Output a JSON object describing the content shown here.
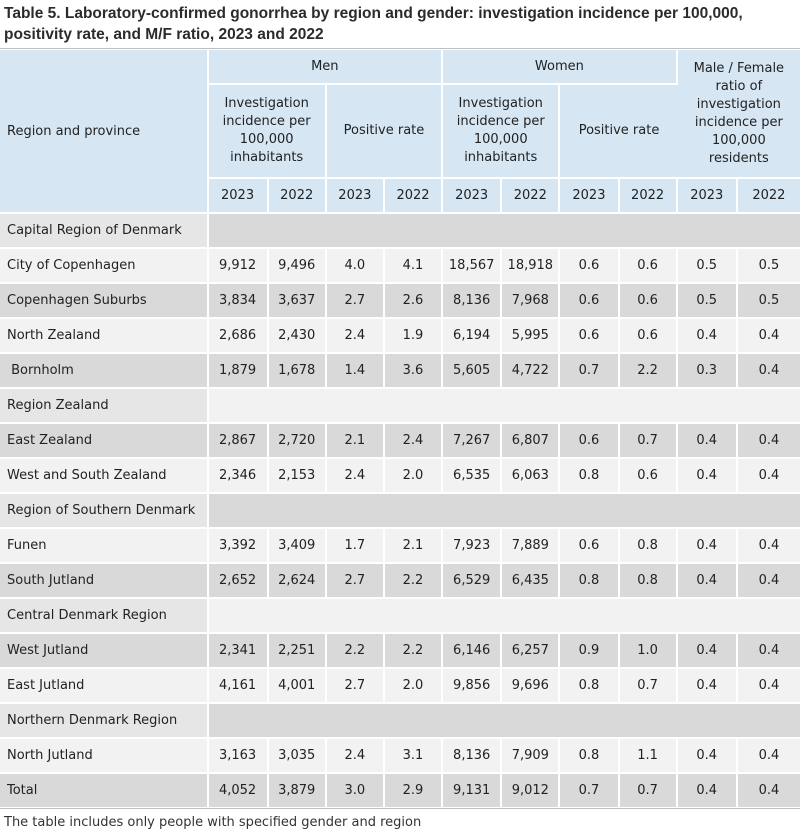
{
  "title": "Table 5. Laboratory-confirmed gonorrhea by region and gender: investigation incidence per 100,000, positivity rate, and M/F ratio, 2023 and 2022",
  "header": {
    "region_label": "Region and province",
    "men": "Men",
    "women": "Women",
    "mf_ratio": "Male / Female ratio of investigation incidence per 100,000 residents",
    "incidence": "Investigation incidence per 100,000 inhabitants",
    "positive_rate": "Positive rate",
    "years": [
      "2023",
      "2022"
    ]
  },
  "rows": [
    {
      "type": "region",
      "label": "Capital Region of Denmark"
    },
    {
      "type": "data",
      "label": "City of Copenhagen",
      "values": [
        "9,912",
        "9,496",
        "4.0",
        "4.1",
        "18,567",
        "18,918",
        "0.6",
        "0.6",
        "0.5",
        "0.5"
      ]
    },
    {
      "type": "data",
      "label": "Copenhagen Suburbs",
      "values": [
        "3,834",
        "3,637",
        "2.7",
        "2.6",
        "8,136",
        "7,968",
        "0.6",
        "0.6",
        "0.5",
        "0.5"
      ]
    },
    {
      "type": "data",
      "label": "North Zealand",
      "values": [
        "2,686",
        "2,430",
        "2.4",
        "1.9",
        "6,194",
        "5,995",
        "0.6",
        "0.6",
        "0.4",
        "0.4"
      ]
    },
    {
      "type": "data",
      "label": " Bornholm",
      "values": [
        "1,879",
        "1,678",
        "1.4",
        "3.6",
        "5,605",
        "4,722",
        "0.7",
        "2.2",
        "0.3",
        "0.4"
      ]
    },
    {
      "type": "region",
      "label": "Region Zealand"
    },
    {
      "type": "data",
      "label": "East Zealand",
      "values": [
        "2,867",
        "2,720",
        "2.1",
        "2.4",
        "7,267",
        "6,807",
        "0.6",
        "0.7",
        "0.4",
        "0.4"
      ]
    },
    {
      "type": "data",
      "label": "West and South Zealand",
      "values": [
        "2,346",
        "2,153",
        "2.4",
        "2.0",
        "6,535",
        "6,063",
        "0.8",
        "0.6",
        "0.4",
        "0.4"
      ]
    },
    {
      "type": "region",
      "label": "Region of Southern Denmark"
    },
    {
      "type": "data",
      "label": "Funen",
      "values": [
        "3,392",
        "3,409",
        "1.7",
        "2.1",
        "7,923",
        "7,889",
        "0.6",
        "0.8",
        "0.4",
        "0.4"
      ]
    },
    {
      "type": "data",
      "label": "South Jutland",
      "values": [
        "2,652",
        "2,624",
        "2.7",
        "2.2",
        "6,529",
        "6,435",
        "0.8",
        "0.8",
        "0.4",
        "0.4"
      ]
    },
    {
      "type": "region",
      "label": "Central Denmark Region"
    },
    {
      "type": "data",
      "label": "West Jutland",
      "values": [
        "2,341",
        "2,251",
        "2.2",
        "2.2",
        "6,146",
        "6,257",
        "0.9",
        "1.0",
        "0.4",
        "0.4"
      ]
    },
    {
      "type": "data",
      "label": "East Jutland",
      "values": [
        "4,161",
        "4,001",
        "2.7",
        "2.0",
        "9,856",
        "9,696",
        "0.8",
        "0.7",
        "0.4",
        "0.4"
      ]
    },
    {
      "type": "region",
      "label": "Northern Denmark Region"
    },
    {
      "type": "data",
      "label": "North Jutland",
      "values": [
        "3,163",
        "3,035",
        "2.4",
        "3.1",
        "8,136",
        "7,909",
        "0.8",
        "1.1",
        "0.4",
        "0.4"
      ]
    },
    {
      "type": "data",
      "label": "Total",
      "values": [
        "4,052",
        "3,879",
        "3.0",
        "2.9",
        "9,131",
        "9,012",
        "0.7",
        "0.7",
        "0.4",
        "0.4"
      ]
    }
  ],
  "note": "The table includes only people with specified gender and region",
  "colors": {
    "header_bg": "#d6e6f3",
    "row_gray": "#d9d9d9",
    "row_light": "#f2f2f2"
  }
}
